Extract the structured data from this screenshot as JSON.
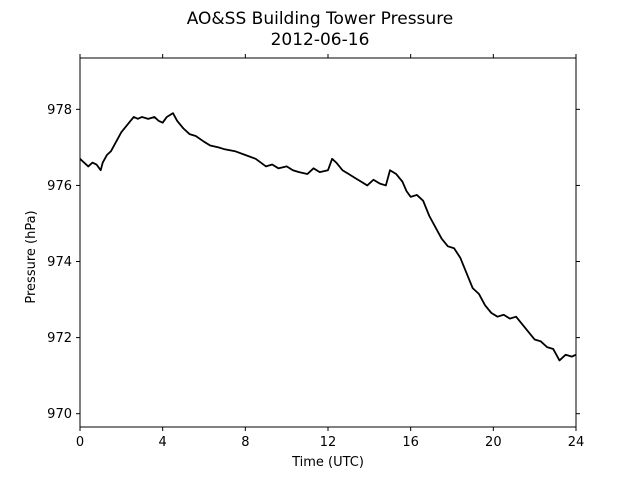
{
  "chart_data": {
    "type": "line",
    "title": "AO&SS Building Tower Pressure",
    "subtitle": "2012-06-16",
    "xlabel": "Time (UTC)",
    "ylabel": "Pressure (hPa)",
    "xlim": [
      0,
      24
    ],
    "ylim": [
      969.65,
      979.35
    ],
    "xticks": [
      0,
      4,
      8,
      12,
      16,
      20,
      24
    ],
    "yticks": [
      970,
      972,
      974,
      976,
      978
    ],
    "grid": false,
    "line_color": "#000000",
    "series": [
      {
        "x": [
          0,
          0.2,
          0.4,
          0.6,
          0.8,
          1.0,
          1.1,
          1.3,
          1.5,
          1.7,
          2.0,
          2.3,
          2.6,
          2.8,
          3.0,
          3.3,
          3.6,
          3.8,
          4.0,
          4.2,
          4.5,
          4.7,
          5.0,
          5.3,
          5.6,
          6.0,
          6.3,
          6.7,
          7.0,
          7.5,
          8.0,
          8.5,
          9.0,
          9.3,
          9.6,
          10.0,
          10.3,
          10.6,
          11.0,
          11.3,
          11.6,
          12.0,
          12.2,
          12.4,
          12.7,
          13.0,
          13.3,
          13.6,
          13.9,
          14.2,
          14.5,
          14.8,
          15.0,
          15.3,
          15.6,
          15.8,
          16.0,
          16.3,
          16.6,
          16.9,
          17.2,
          17.5,
          17.8,
          18.1,
          18.4,
          18.7,
          19.0,
          19.3,
          19.6,
          19.9,
          20.2,
          20.5,
          20.8,
          21.1,
          21.4,
          21.7,
          22.0,
          22.3,
          22.6,
          22.9,
          23.2,
          23.5,
          23.8,
          24.0
        ],
        "y": [
          976.7,
          976.6,
          976.5,
          976.6,
          976.55,
          976.4,
          976.6,
          976.8,
          976.9,
          977.1,
          977.4,
          977.6,
          977.8,
          977.75,
          977.8,
          977.75,
          977.8,
          977.7,
          977.65,
          977.8,
          977.9,
          977.7,
          977.5,
          977.35,
          977.3,
          977.15,
          977.05,
          977.0,
          976.95,
          976.9,
          976.8,
          976.7,
          976.5,
          976.55,
          976.45,
          976.5,
          976.4,
          976.35,
          976.3,
          976.45,
          976.35,
          976.4,
          976.7,
          976.6,
          976.4,
          976.3,
          976.2,
          976.1,
          976.0,
          976.15,
          976.05,
          976.0,
          976.4,
          976.3,
          976.1,
          975.85,
          975.7,
          975.75,
          975.6,
          975.2,
          974.9,
          974.6,
          974.4,
          974.35,
          974.1,
          973.7,
          973.3,
          973.15,
          972.85,
          972.65,
          972.55,
          972.6,
          972.5,
          972.55,
          972.35,
          972.15,
          971.95,
          971.9,
          971.75,
          971.7,
          971.4,
          971.55,
          971.5,
          971.55
        ]
      }
    ]
  }
}
